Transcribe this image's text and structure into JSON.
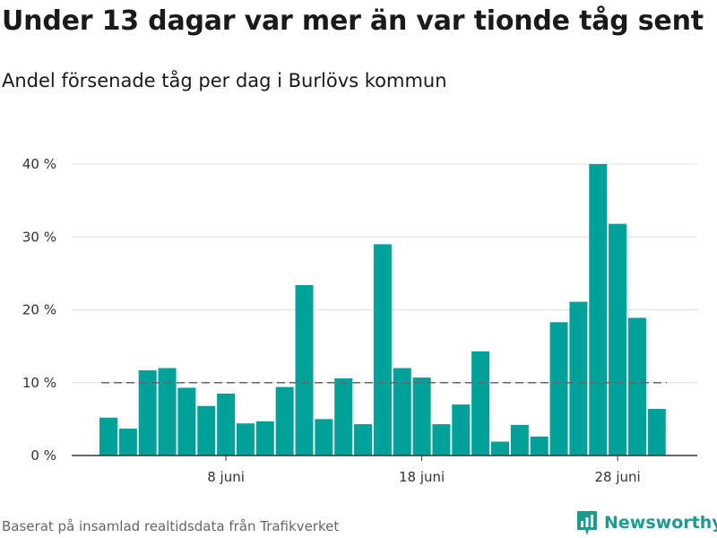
{
  "title": "Under 13 dagar var mer än var tionde tåg sent",
  "subtitle": "Andel försenade tåg per dag i Burlövs kommun",
  "source": "Baserat på insamlad realtidsdata från Trafikverket",
  "brand": {
    "name": "Newsworthy",
    "color": "#1e9b8f"
  },
  "colors": {
    "bar": "#00a199",
    "grid": "#dddddd",
    "reference_line": "#666666",
    "axis": "#333333"
  },
  "chart_data": {
    "type": "bar",
    "title": "Under 13 dagar var mer än var tionde tåg sent",
    "subtitle": "Andel försenade tåg per dag i Burlövs kommun",
    "xlabel": "",
    "ylabel": "",
    "x_start_day": 2,
    "x_tick_labels": [
      {
        "day": 8,
        "label": "8 juni"
      },
      {
        "day": 18,
        "label": "18 juni"
      },
      {
        "day": 28,
        "label": "28 juni"
      }
    ],
    "values": [
      5.2,
      3.7,
      11.7,
      12.0,
      9.3,
      6.8,
      8.5,
      4.4,
      4.7,
      9.4,
      23.4,
      5.0,
      10.6,
      4.3,
      29.0,
      12.0,
      10.7,
      4.3,
      7.0,
      14.3,
      1.9,
      4.2,
      2.6,
      18.3,
      21.1,
      40.0,
      31.8,
      18.9,
      6.4
    ],
    "ylim": [
      0,
      40
    ],
    "y_ticks": [
      0,
      10,
      20,
      30,
      40
    ],
    "y_tick_labels": [
      "0 %",
      "10 %",
      "20 %",
      "30 %",
      "40 %"
    ],
    "reference_line": 10,
    "grid": true,
    "legend": "none"
  }
}
